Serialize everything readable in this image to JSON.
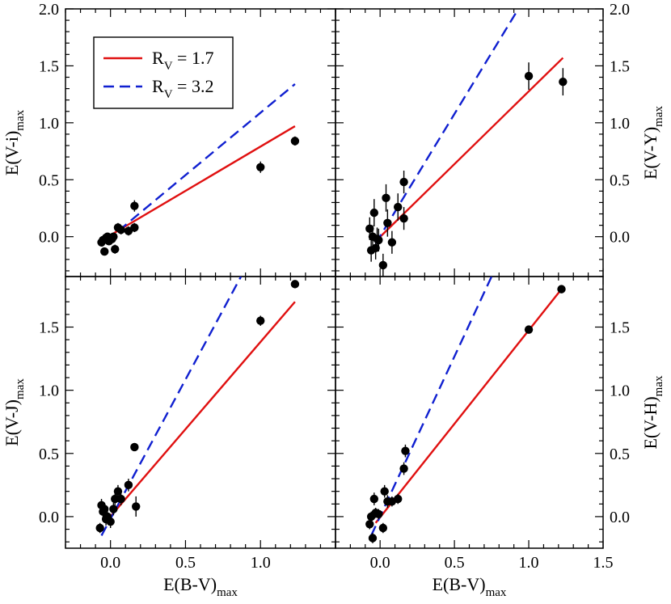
{
  "figure": {
    "x_axis_label": {
      "main": "E(B-V)",
      "sub": "max"
    },
    "legend": [
      {
        "name": "R",
        "sub": "V",
        "value": " = 1.7",
        "color": "#e01010",
        "dash": "solid"
      },
      {
        "name": "R",
        "sub": "V",
        "value": " = 3.2",
        "color": "#1020d0",
        "dash": "dashed"
      }
    ],
    "point_color": "#000000"
  },
  "chart_data": [
    {
      "type": "scatter",
      "panel": "top-left",
      "ylabel": {
        "main": "E(V-i)",
        "sub": "max"
      },
      "ylabel_side": "left",
      "xlim": [
        -0.3,
        1.5
      ],
      "ylim": [
        -0.35,
        2.0
      ],
      "yticks": [
        0.0,
        0.5,
        1.0,
        1.5,
        2.0
      ],
      "ytick_labels": [
        "0.0",
        "0.5",
        "1.0",
        "1.5",
        "2.0"
      ],
      "show_legend": true,
      "lines": [
        {
          "name": "RV=1.7",
          "x": [
            -0.03,
            1.23
          ],
          "y": [
            -0.01,
            0.97
          ]
        },
        {
          "name": "RV=3.2",
          "x": [
            -0.03,
            1.23
          ],
          "y": [
            -0.04,
            1.34
          ]
        }
      ],
      "points": [
        {
          "x": -0.06,
          "y": -0.05,
          "err": 0.03
        },
        {
          "x": -0.05,
          "y": -0.03,
          "err": 0.03
        },
        {
          "x": -0.04,
          "y": -0.13,
          "err": 0.03
        },
        {
          "x": -0.03,
          "y": -0.01,
          "err": 0.03
        },
        {
          "x": -0.02,
          "y": 0.0,
          "err": 0.03
        },
        {
          "x": -0.01,
          "y": -0.04,
          "err": 0.03
        },
        {
          "x": 0.01,
          "y": -0.02,
          "err": 0.03
        },
        {
          "x": 0.02,
          "y": 0.0,
          "err": 0.03
        },
        {
          "x": 0.03,
          "y": -0.11,
          "err": 0.04
        },
        {
          "x": 0.05,
          "y": 0.08,
          "err": 0.04
        },
        {
          "x": 0.07,
          "y": 0.06,
          "err": 0.04
        },
        {
          "x": 0.12,
          "y": 0.05,
          "err": 0.04
        },
        {
          "x": 0.16,
          "y": 0.27,
          "err": 0.05
        },
        {
          "x": 0.16,
          "y": 0.08,
          "err": 0.04
        },
        {
          "x": 1.0,
          "y": 0.61,
          "err": 0.05
        },
        {
          "x": 1.23,
          "y": 0.84,
          "err": 0.04
        }
      ]
    },
    {
      "type": "scatter",
      "panel": "top-right",
      "ylabel": {
        "main": "E(V-Y)",
        "sub": "max"
      },
      "ylabel_side": "right",
      "xlim": [
        -0.3,
        1.5
      ],
      "ylim": [
        -0.35,
        2.0
      ],
      "yticks": [
        0.0,
        0.5,
        1.0,
        1.5,
        2.0
      ],
      "ytick_labels": [
        "0.0",
        "0.5",
        "1.0",
        "1.5",
        "2.0"
      ],
      "show_legend": false,
      "lines": [
        {
          "name": "RV=1.7",
          "x": [
            -0.03,
            1.23
          ],
          "y": [
            -0.04,
            1.57
          ]
        },
        {
          "name": "RV=3.2",
          "x": [
            -0.03,
            0.93
          ],
          "y": [
            -0.06,
            2.0
          ]
        }
      ],
      "points": [
        {
          "x": -0.07,
          "y": 0.07,
          "err": 0.1
        },
        {
          "x": -0.06,
          "y": -0.12,
          "err": 0.1
        },
        {
          "x": -0.05,
          "y": 0.0,
          "err": 0.1
        },
        {
          "x": -0.04,
          "y": 0.21,
          "err": 0.12
        },
        {
          "x": -0.03,
          "y": -0.1,
          "err": 0.1
        },
        {
          "x": -0.02,
          "y": -0.02,
          "err": 0.1
        },
        {
          "x": -0.01,
          "y": -0.03,
          "err": 0.1
        },
        {
          "x": 0.02,
          "y": -0.25,
          "err": 0.1
        },
        {
          "x": 0.04,
          "y": 0.34,
          "err": 0.12
        },
        {
          "x": 0.05,
          "y": 0.12,
          "err": 0.12
        },
        {
          "x": 0.08,
          "y": -0.05,
          "err": 0.1
        },
        {
          "x": 0.12,
          "y": 0.26,
          "err": 0.12
        },
        {
          "x": 0.16,
          "y": 0.48,
          "err": 0.1
        },
        {
          "x": 0.16,
          "y": 0.16,
          "err": 0.1
        },
        {
          "x": 1.0,
          "y": 1.41,
          "err": 0.12
        },
        {
          "x": 1.23,
          "y": 1.36,
          "err": 0.12
        }
      ]
    },
    {
      "type": "scatter",
      "panel": "bottom-left",
      "ylabel": {
        "main": "E(V-J)",
        "sub": "max"
      },
      "ylabel_side": "left",
      "xlim": [
        -0.3,
        1.5
      ],
      "ylim": [
        -0.25,
        1.9
      ],
      "xticks": [
        0.0,
        0.5,
        1.0
      ],
      "xtick_labels": [
        "0.0",
        "0.5",
        "1.0"
      ],
      "yticks": [
        0.0,
        0.5,
        1.0,
        1.5
      ],
      "ytick_labels": [
        "0.0",
        "0.5",
        "1.0",
        "1.5"
      ],
      "show_legend": false,
      "lines": [
        {
          "name": "RV=1.7",
          "x": [
            -0.03,
            1.23
          ],
          "y": [
            -0.04,
            1.7
          ]
        },
        {
          "name": "RV=3.2",
          "x": [
            -0.06,
            0.87
          ],
          "y": [
            -0.15,
            1.9
          ]
        }
      ],
      "points": [
        {
          "x": -0.07,
          "y": -0.09,
          "err": 0.04
        },
        {
          "x": -0.06,
          "y": 0.09,
          "err": 0.05
        },
        {
          "x": -0.05,
          "y": 0.04,
          "err": 0.05
        },
        {
          "x": -0.04,
          "y": 0.06,
          "err": 0.05
        },
        {
          "x": -0.03,
          "y": -0.02,
          "err": 0.05
        },
        {
          "x": -0.02,
          "y": 0.0,
          "err": 0.05
        },
        {
          "x": 0.0,
          "y": -0.04,
          "err": 0.05
        },
        {
          "x": 0.02,
          "y": 0.06,
          "err": 0.05
        },
        {
          "x": 0.03,
          "y": 0.14,
          "err": 0.05
        },
        {
          "x": 0.05,
          "y": 0.2,
          "err": 0.05
        },
        {
          "x": 0.07,
          "y": 0.14,
          "err": 0.05
        },
        {
          "x": 0.12,
          "y": 0.25,
          "err": 0.05
        },
        {
          "x": 0.16,
          "y": 0.55,
          "err": 0.03
        },
        {
          "x": 0.17,
          "y": 0.08,
          "err": 0.08
        },
        {
          "x": 1.0,
          "y": 1.55,
          "err": 0.04
        },
        {
          "x": 1.23,
          "y": 1.84,
          "err": 0.02
        }
      ]
    },
    {
      "type": "scatter",
      "panel": "bottom-right",
      "ylabel": {
        "main": "E(V-H)",
        "sub": "max"
      },
      "ylabel_side": "right",
      "xlim": [
        -0.3,
        1.5
      ],
      "ylim": [
        -0.25,
        1.9
      ],
      "xticks": [
        0.0,
        0.5,
        1.0,
        1.5
      ],
      "xtick_labels": [
        "0.0",
        "0.5",
        "1.0",
        "1.5"
      ],
      "yticks": [
        0.0,
        0.5,
        1.0,
        1.5
      ],
      "ytick_labels": [
        "0.0",
        "0.5",
        "1.0",
        "1.5"
      ],
      "show_legend": false,
      "lines": [
        {
          "name": "RV=1.7",
          "x": [
            -0.03,
            1.22
          ],
          "y": [
            -0.05,
            1.8
          ]
        },
        {
          "name": "RV=3.2",
          "x": [
            -0.06,
            0.75
          ],
          "y": [
            -0.15,
            1.9
          ]
        }
      ],
      "points": [
        {
          "x": -0.07,
          "y": -0.06,
          "err": 0.04
        },
        {
          "x": -0.06,
          "y": 0.0,
          "err": 0.04
        },
        {
          "x": -0.05,
          "y": -0.17,
          "err": 0.04
        },
        {
          "x": -0.04,
          "y": 0.14,
          "err": 0.05
        },
        {
          "x": -0.03,
          "y": 0.03,
          "err": 0.04
        },
        {
          "x": -0.01,
          "y": 0.02,
          "err": 0.04
        },
        {
          "x": 0.02,
          "y": -0.09,
          "err": 0.04
        },
        {
          "x": 0.03,
          "y": 0.2,
          "err": 0.05
        },
        {
          "x": 0.05,
          "y": 0.12,
          "err": 0.05
        },
        {
          "x": 0.08,
          "y": 0.12,
          "err": 0.04
        },
        {
          "x": 0.12,
          "y": 0.14,
          "err": 0.04
        },
        {
          "x": 0.16,
          "y": 0.38,
          "err": 0.05
        },
        {
          "x": 0.17,
          "y": 0.52,
          "err": 0.05
        },
        {
          "x": 1.0,
          "y": 1.48,
          "err": 0.03
        },
        {
          "x": 1.22,
          "y": 1.8,
          "err": 0.02
        }
      ]
    }
  ]
}
